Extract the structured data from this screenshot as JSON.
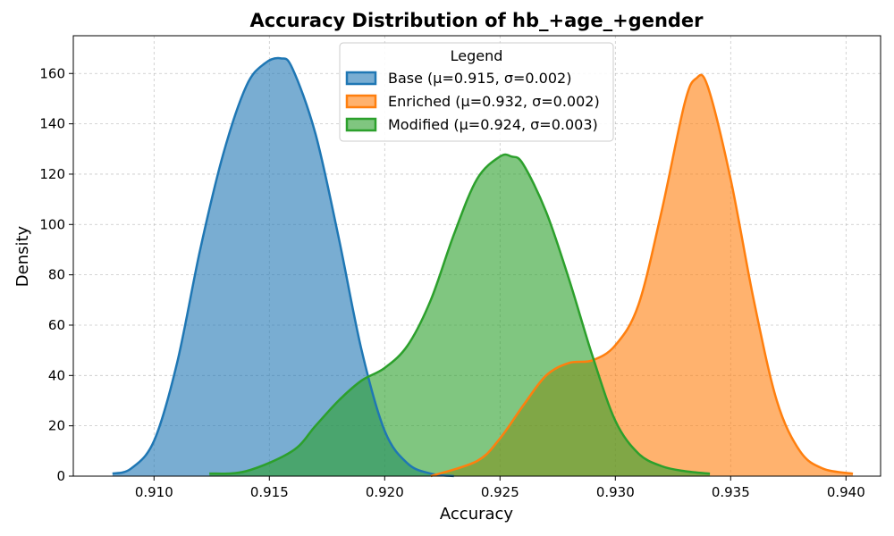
{
  "chart_data": {
    "type": "area",
    "title": "Accuracy Distribution of hb_+age_+gender",
    "xlabel": "Accuracy",
    "ylabel": "Density",
    "xlim": [
      0.9065,
      0.9415
    ],
    "ylim": [
      0,
      175
    ],
    "xticks": [
      0.91,
      0.915,
      0.92,
      0.925,
      0.93,
      0.935,
      0.94
    ],
    "xtick_labels": [
      "0.910",
      "0.915",
      "0.920",
      "0.925",
      "0.930",
      "0.935",
      "0.940"
    ],
    "yticks": [
      0,
      20,
      40,
      60,
      80,
      100,
      120,
      140,
      160
    ],
    "ytick_labels": [
      "0",
      "20",
      "40",
      "60",
      "80",
      "100",
      "120",
      "140",
      "160"
    ],
    "grid": true,
    "legend": {
      "title": "Legend",
      "placement": "top-center"
    },
    "series": [
      {
        "name": "Base (μ=0.915, σ=0.002)",
        "color": "#1f77b4",
        "x": [
          0.9082,
          0.909,
          0.91,
          0.911,
          0.912,
          0.913,
          0.914,
          0.9148,
          0.9155,
          0.916,
          0.917,
          0.918,
          0.919,
          0.92,
          0.921,
          0.922,
          0.923
        ],
        "y": [
          1,
          3,
          14,
          45,
          90,
          128,
          155,
          164,
          166,
          162,
          136,
          95,
          50,
          18,
          5,
          1,
          0
        ]
      },
      {
        "name": "Enriched (μ=0.932, σ=0.002)",
        "color": "#ff7f0e",
        "x": [
          0.922,
          0.924,
          0.925,
          0.926,
          0.927,
          0.928,
          0.929,
          0.93,
          0.931,
          0.932,
          0.933,
          0.9335,
          0.934,
          0.935,
          0.936,
          0.937,
          0.938,
          0.939,
          0.9403
        ],
        "y": [
          0,
          6,
          15,
          28,
          40,
          45,
          46,
          52,
          68,
          105,
          148,
          158,
          155,
          118,
          70,
          30,
          10,
          3,
          1
        ]
      },
      {
        "name": "Modified (μ=0.924, σ=0.003)",
        "color": "#2ca02c",
        "x": [
          0.9124,
          0.914,
          0.916,
          0.917,
          0.918,
          0.919,
          0.92,
          0.921,
          0.922,
          0.923,
          0.924,
          0.925,
          0.9255,
          0.926,
          0.927,
          0.928,
          0.929,
          0.93,
          0.931,
          0.932,
          0.933,
          0.9341
        ],
        "y": [
          1,
          2,
          10,
          20,
          30,
          38,
          43,
          52,
          70,
          96,
          118,
          127,
          127,
          124,
          105,
          78,
          48,
          22,
          9,
          4,
          2,
          1
        ]
      }
    ]
  }
}
